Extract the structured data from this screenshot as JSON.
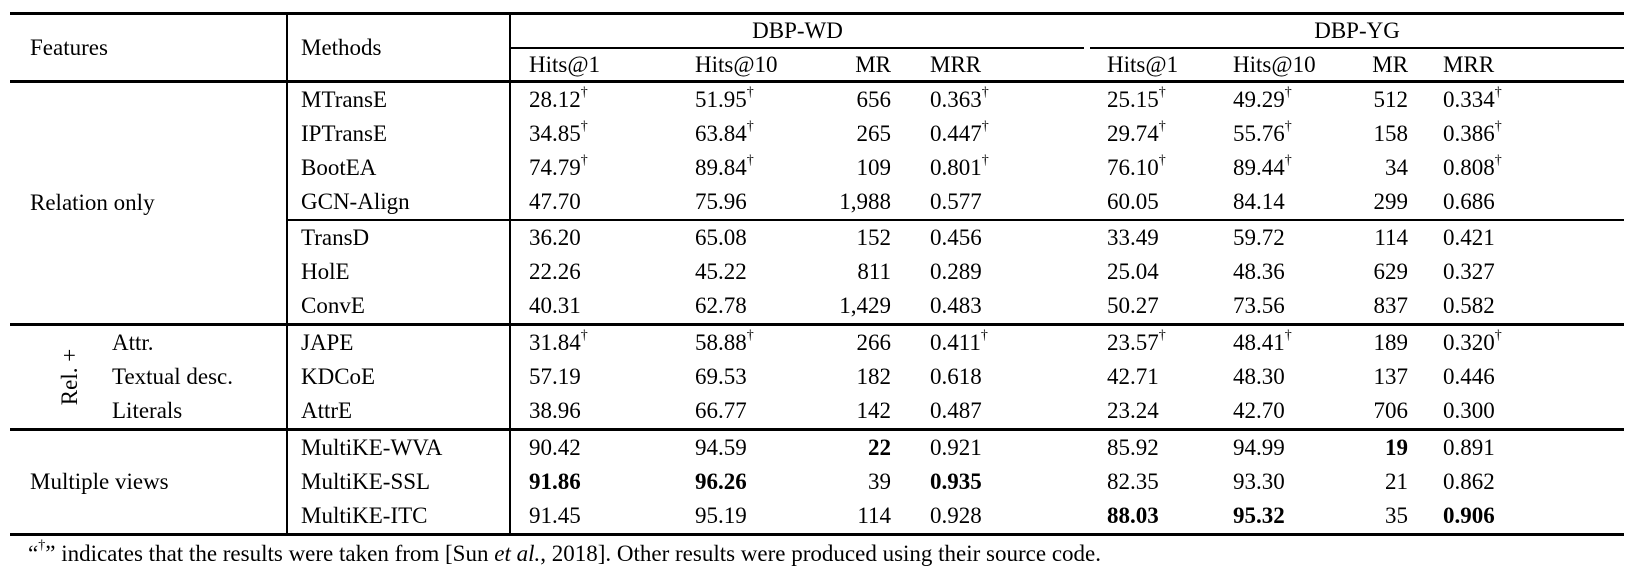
{
  "table": {
    "header": {
      "features": "Features",
      "methods": "Methods",
      "dataset_groups": [
        "DBP-WD",
        "DBP-YG"
      ],
      "metrics": [
        "Hits@1",
        "Hits@10",
        "MR",
        "MRR"
      ]
    },
    "groups": [
      {
        "feature": {
          "type": "plain",
          "label": "Relation only"
        },
        "rows": [
          {
            "method": "MTransE",
            "values": [
              "28.12",
              "51.95",
              "656",
              "0.363",
              "25.15",
              "49.29",
              "512",
              "0.334"
            ],
            "dagger": [
              0,
              1,
              3,
              4,
              5,
              7
            ],
            "bold": []
          },
          {
            "method": "IPTransE",
            "values": [
              "34.85",
              "63.84",
              "265",
              "0.447",
              "29.74",
              "55.76",
              "158",
              "0.386"
            ],
            "dagger": [
              0,
              1,
              3,
              4,
              5,
              7
            ],
            "bold": []
          },
          {
            "method": "BootEA",
            "values": [
              "74.79",
              "89.84",
              "109",
              "0.801",
              "76.10",
              "89.44",
              "34",
              "0.808"
            ],
            "dagger": [
              0,
              1,
              3,
              4,
              5,
              7
            ],
            "bold": []
          },
          {
            "method": "GCN-Align",
            "values": [
              "47.70",
              "75.96",
              "1,988",
              "0.577",
              "60.05",
              "84.14",
              "299",
              "0.686"
            ],
            "dagger": [],
            "bold": []
          },
          {
            "method": "TransD",
            "values": [
              "36.20",
              "65.08",
              "152",
              "0.456",
              "33.49",
              "59.72",
              "114",
              "0.421"
            ],
            "dagger": [],
            "bold": [],
            "subdivider": true
          },
          {
            "method": "HolE",
            "values": [
              "22.26",
              "45.22",
              "811",
              "0.289",
              "25.04",
              "48.36",
              "629",
              "0.327"
            ],
            "dagger": [],
            "bold": []
          },
          {
            "method": "ConvE",
            "values": [
              "40.31",
              "62.78",
              "1,429",
              "0.483",
              "50.27",
              "73.56",
              "837",
              "0.582"
            ],
            "dagger": [],
            "bold": []
          }
        ]
      },
      {
        "feature": {
          "type": "rotated",
          "rotated_label": "Rel. +",
          "lines": [
            "Attr.",
            "Textual desc.",
            "Literals"
          ]
        },
        "rows": [
          {
            "method": "JAPE",
            "values": [
              "31.84",
              "58.88",
              "266",
              "0.411",
              "23.57",
              "48.41",
              "189",
              "0.320"
            ],
            "dagger": [
              0,
              1,
              3,
              4,
              5,
              7
            ],
            "bold": []
          },
          {
            "method": "KDCoE",
            "values": [
              "57.19",
              "69.53",
              "182",
              "0.618",
              "42.71",
              "48.30",
              "137",
              "0.446"
            ],
            "dagger": [],
            "bold": []
          },
          {
            "method": "AttrE",
            "values": [
              "38.96",
              "66.77",
              "142",
              "0.487",
              "23.24",
              "42.70",
              "706",
              "0.300"
            ],
            "dagger": [],
            "bold": []
          }
        ]
      },
      {
        "feature": {
          "type": "plain",
          "label": "Multiple views"
        },
        "rows": [
          {
            "method": "MultiKE-WVA",
            "values": [
              "90.42",
              "94.59",
              "22",
              "0.921",
              "85.92",
              "94.99",
              "19",
              "0.891"
            ],
            "dagger": [],
            "bold": [
              2,
              6
            ]
          },
          {
            "method": "MultiKE-SSL",
            "values": [
              "91.86",
              "96.26",
              "39",
              "0.935",
              "82.35",
              "93.30",
              "21",
              "0.862"
            ],
            "dagger": [],
            "bold": [
              0,
              1,
              3
            ]
          },
          {
            "method": "MultiKE-ITC",
            "values": [
              "91.45",
              "95.19",
              "114",
              "0.928",
              "88.03",
              "95.32",
              "35",
              "0.906"
            ],
            "dagger": [],
            "bold": [
              4,
              5,
              7
            ]
          }
        ]
      }
    ],
    "footnote": {
      "open_quote": "“",
      "dagger": "†",
      "close_quote": "”",
      "part1": " indicates that the results were taken from  [Sun ",
      "italic": "et al.",
      "part2": ", 2018]. Other results were produced using their source code."
    }
  }
}
